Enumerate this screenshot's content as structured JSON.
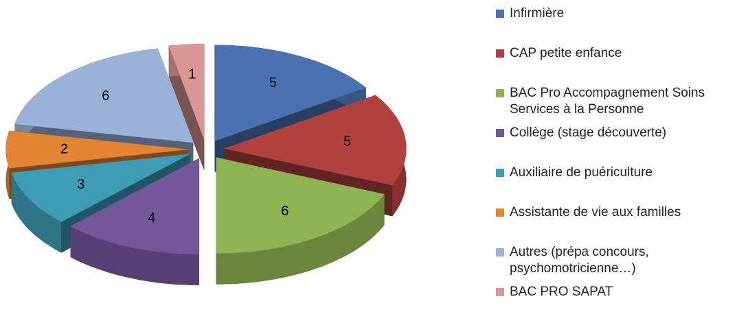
{
  "chart_data": {
    "type": "pie3d",
    "categories": [
      "Infirmière",
      "CAP petite enfance",
      "BAC Pro Accompagnement Soins Services à la Personne",
      "Collège (stage découverte)",
      "Auxiliaire de puériculture",
      "Assistante de vie aux familles",
      "Autres (prépa concours, psychomotricienne…)",
      "BAC PRO SAPAT"
    ],
    "values": [
      5,
      5,
      6,
      4,
      3,
      2,
      6,
      1
    ],
    "colors": [
      "#4a72b0",
      "#b0413e",
      "#8db352",
      "#74579a",
      "#3f9cb5",
      "#e38432",
      "#9bb2d8",
      "#d99694"
    ],
    "legend": "right"
  }
}
